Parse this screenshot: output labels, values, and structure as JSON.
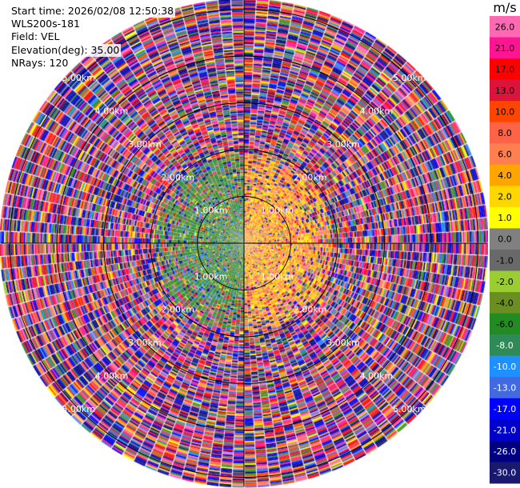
{
  "header": {
    "start_time": "Start time: 2026/02/08 12:50:38",
    "instrument": "WLS200s-181",
    "field": "Field: VEL",
    "elevation": "Elevation(deg): 35.00",
    "nrays": "NRays: 120"
  },
  "colorbar": {
    "unit": "m/s",
    "tick_labels": [
      "26.0",
      "21.0",
      "17.0",
      "13.0",
      "10.0",
      "8.0",
      "6.0",
      "4.0",
      "2.0",
      "1.0",
      "0.0",
      "-1.0",
      "-2.0",
      "-4.0",
      "-6.0",
      "-8.0",
      "-10.0",
      "-13.0",
      "-17.0",
      "-21.0",
      "-26.0",
      "-30.0"
    ],
    "colors": [
      "#ff69b4",
      "#ff1493",
      "#ff0000",
      "#dc143c",
      "#ff4500",
      "#ff6347",
      "#ff7f50",
      "#ffa500",
      "#ffd700",
      "#ffff00",
      "#808080",
      "#696969",
      "#9acd32",
      "#6b8e23",
      "#228b22",
      "#2e8b57",
      "#1e90ff",
      "#4169e1",
      "#0000ff",
      "#0000cd",
      "#000080",
      "#191970"
    ]
  },
  "chart_data": {
    "type": "heatmap",
    "subtype": "polar PPI (plan position indicator)",
    "field": "VEL",
    "units": "m/s",
    "elevation_deg": 35.0,
    "n_rays": 120,
    "range_rings_km": [
      1.0,
      2.0,
      3.0,
      4.0,
      5.0
    ],
    "range_ring_labels": [
      "1.00km",
      "2.00km",
      "3.00km",
      "4.00km",
      "5.00km"
    ],
    "max_range_km": 5.2,
    "value_range": [
      -30.0,
      30.0
    ],
    "pattern": "Near range (< ~1.5 km): coherent radial velocity, negative (green/blue, -2 to -10 m/s) on west half, positive (yellow/orange, 2 to 8 m/s) on east half; beyond ~1.5 km the signal is noise spanning the full -30 to 30 m/s range"
  }
}
